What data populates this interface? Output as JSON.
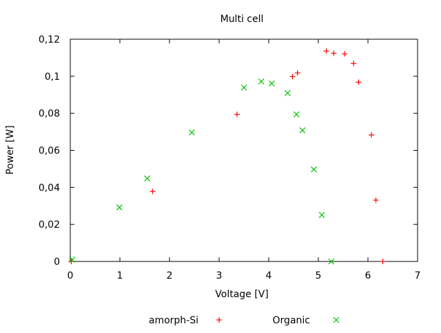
{
  "chart_data": {
    "type": "scatter",
    "title": "Multi cell",
    "xlabel": "Voltage [V]",
    "ylabel": "Power [W]",
    "xlim": [
      0,
      7
    ],
    "ylim": [
      0,
      0.12
    ],
    "x_ticks": [
      "0",
      "1",
      "2",
      "3",
      "4",
      "5",
      "6",
      "7"
    ],
    "y_ticks": [
      "0",
      "0,02",
      "0,04",
      "0,06",
      "0,08",
      "0,1",
      "0,12"
    ],
    "grid": false,
    "legend_placement": "bottom",
    "series": [
      {
        "name": "amorph-Si",
        "marker": "plus",
        "color": "#ff0000",
        "points": [
          [
            0.02,
            0.0
          ],
          [
            1.66,
            0.0378
          ],
          [
            3.36,
            0.0794
          ],
          [
            4.48,
            0.0998
          ],
          [
            4.58,
            0.1018
          ],
          [
            5.16,
            0.1136
          ],
          [
            5.31,
            0.1124
          ],
          [
            5.53,
            0.1121
          ],
          [
            5.71,
            0.1069
          ],
          [
            5.81,
            0.0968
          ],
          [
            6.07,
            0.0683
          ],
          [
            6.16,
            0.0331
          ],
          [
            6.3,
            0.0
          ]
        ]
      },
      {
        "name": "Organic",
        "marker": "cross",
        "color": "#00c000",
        "points": [
          [
            0.04,
            0.001
          ],
          [
            0.99,
            0.0292
          ],
          [
            1.55,
            0.0448
          ],
          [
            2.45,
            0.0697
          ],
          [
            3.5,
            0.0939
          ],
          [
            3.85,
            0.0972
          ],
          [
            4.06,
            0.0961
          ],
          [
            4.38,
            0.0909
          ],
          [
            4.56,
            0.0794
          ],
          [
            4.68,
            0.0708
          ],
          [
            4.91,
            0.0497
          ],
          [
            5.07,
            0.0251
          ],
          [
            5.26,
            0.0
          ]
        ]
      }
    ]
  }
}
